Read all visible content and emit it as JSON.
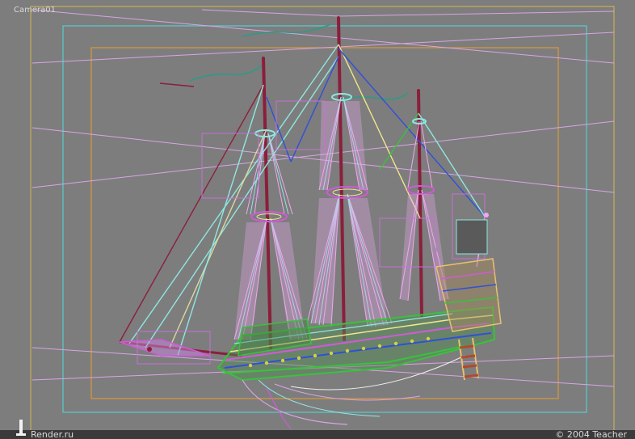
{
  "viewport": {
    "label": "Camera01",
    "background": "#7d7d7d"
  },
  "footer": {
    "left_text": "Render.ru",
    "right_text": "© 2004 Teacher",
    "logo_icon": "render-ru-logo-icon"
  },
  "colors": {
    "camera_frame_outer": "#d8b84a",
    "safe_frame_cyan": "#59c7c9",
    "safe_frame_orange": "#d99a3a",
    "perspective_lines": "#d9a5e6",
    "mast": "#8a1f3c",
    "rigging_cyan": "#8fe8e0",
    "rigging_pink": "#f0a8f0",
    "hull_green": "#39c23c",
    "hull_magenta": "#d05ad8",
    "hull_blue": "#3050d8",
    "flag_green": "#2f9a86"
  }
}
